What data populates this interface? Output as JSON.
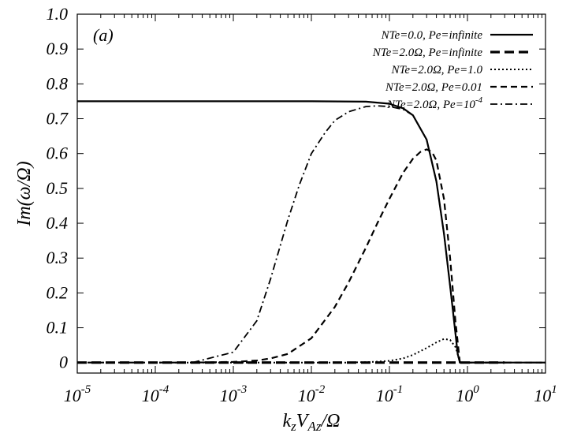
{
  "chart_data": {
    "type": "line",
    "panel_label": "(a)",
    "xlabel": "kzVAz/Ω",
    "ylabel": "Im(ω/Ω)",
    "xscale": "log",
    "xlim": [
      1e-05,
      10
    ],
    "ylim": [
      -0.03,
      1.0
    ],
    "x_ticks": [
      {
        "base": "10",
        "exp": "-5",
        "value": 1e-05
      },
      {
        "base": "10",
        "exp": "-4",
        "value": 0.0001
      },
      {
        "base": "10",
        "exp": "-3",
        "value": 0.001
      },
      {
        "base": "10",
        "exp": "-2",
        "value": 0.01
      },
      {
        "base": "10",
        "exp": "-1",
        "value": 0.1
      },
      {
        "base": "10",
        "exp": "0",
        "value": 1
      },
      {
        "base": "10",
        "exp": "1",
        "value": 10
      }
    ],
    "y_ticks": [
      "0",
      "0.1",
      "0.2",
      "0.3",
      "0.4",
      "0.5",
      "0.6",
      "0.7",
      "0.8",
      "0.9",
      "1.0"
    ],
    "legend_position": "top-right",
    "series": [
      {
        "name": "NTe=0.0,    Pe=infinite",
        "style": "solid",
        "x": [
          1e-05,
          0.001,
          0.01,
          0.05,
          0.1,
          0.15,
          0.2,
          0.3,
          0.4,
          0.5,
          0.6,
          0.65,
          0.7,
          0.75,
          0.8,
          10
        ],
        "y": [
          0.75,
          0.75,
          0.75,
          0.749,
          0.743,
          0.73,
          0.71,
          0.64,
          0.52,
          0.37,
          0.22,
          0.15,
          0.085,
          0.025,
          0.0,
          0.0
        ]
      },
      {
        "name": "NTe=2.0Ω, Pe=infinite",
        "style": "bold-dash",
        "x": [
          1e-05,
          0.1,
          1,
          3
        ],
        "y": [
          0.0,
          0.0,
          0.0,
          0.0
        ]
      },
      {
        "name": "NTe=2.0Ω, Pe=1.0",
        "style": "dotted",
        "x": [
          0.0001,
          0.01,
          0.03,
          0.06,
          0.1,
          0.15,
          0.2,
          0.3,
          0.4,
          0.5,
          0.6,
          0.7,
          0.75,
          0.8,
          3
        ],
        "y": [
          0.0,
          0.0,
          0.0,
          0.002,
          0.005,
          0.012,
          0.022,
          0.042,
          0.058,
          0.068,
          0.065,
          0.045,
          0.025,
          0.0,
          0.0
        ]
      },
      {
        "name": "NTe=2.0Ω, Pe=0.01",
        "style": "dashed",
        "x": [
          1e-05,
          0.0003,
          0.001,
          0.002,
          0.003,
          0.005,
          0.01,
          0.02,
          0.03,
          0.05,
          0.07,
          0.1,
          0.15,
          0.2,
          0.25,
          0.3,
          0.35,
          0.4,
          0.5,
          0.6,
          0.7,
          0.8,
          10
        ],
        "y": [
          0.0,
          0.0,
          0.002,
          0.006,
          0.012,
          0.025,
          0.07,
          0.16,
          0.23,
          0.33,
          0.4,
          0.47,
          0.545,
          0.585,
          0.605,
          0.612,
          0.605,
          0.58,
          0.47,
          0.3,
          0.12,
          0.0,
          0.0
        ]
      },
      {
        "name": "NTe=2.0Ω, Pe=10",
        "name_superscript": "-4",
        "style": "dash-dot",
        "x": [
          0.0003,
          0.001,
          0.002,
          0.003,
          0.005,
          0.007,
          0.01,
          0.015,
          0.02,
          0.03,
          0.05,
          0.07,
          0.1,
          0.15,
          0.2,
          0.3,
          0.4,
          0.5,
          0.6,
          0.7,
          0.75,
          0.8,
          10
        ],
        "y": [
          0.0,
          0.03,
          0.12,
          0.24,
          0.41,
          0.51,
          0.6,
          0.66,
          0.695,
          0.72,
          0.735,
          0.737,
          0.735,
          0.727,
          0.71,
          0.64,
          0.52,
          0.37,
          0.22,
          0.085,
          0.025,
          0.0,
          0.0
        ]
      }
    ]
  }
}
